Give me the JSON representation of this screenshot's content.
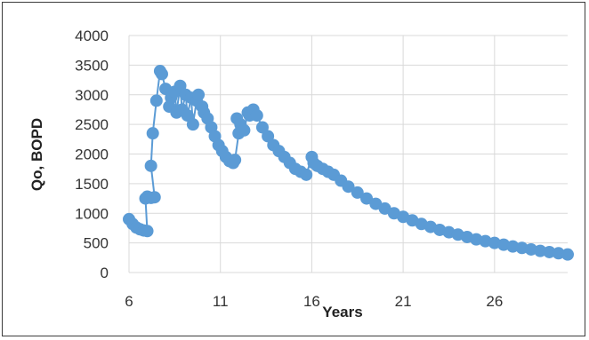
{
  "chart_data": {
    "type": "scatter",
    "title": "",
    "xlabel": "Years",
    "ylabel": "Qo, BOPD",
    "xlim": [
      6,
      30
    ],
    "ylim": [
      0,
      4000
    ],
    "x_ticks": [
      "6",
      "11",
      "16",
      "21",
      "26"
    ],
    "y_ticks": [
      "0",
      "500",
      "1000",
      "1500",
      "2000",
      "2500",
      "3000",
      "3500",
      "4000"
    ],
    "grid": true,
    "legend": "none",
    "series": [
      {
        "color": "#5b9bd5",
        "marker": "circle",
        "line": true,
        "x": [
          6.0,
          6.2,
          6.4,
          6.6,
          6.8,
          7.0,
          6.9,
          7.0,
          7.2,
          7.4,
          7.2,
          7.3,
          7.5,
          7.7,
          7.8,
          8.0,
          8.2,
          8.3,
          8.5,
          8.6,
          8.8,
          8.9,
          9.1,
          9.2,
          9.4,
          9.5,
          9.7,
          9.8,
          10.0,
          10.1,
          10.3,
          10.5,
          10.7,
          10.9,
          11.1,
          11.3,
          11.5,
          11.7,
          11.8,
          12.0,
          11.9,
          12.1,
          12.3,
          12.5,
          12.6,
          12.8,
          13.0,
          13.3,
          13.6,
          13.9,
          14.2,
          14.5,
          14.8,
          15.1,
          15.4,
          15.7,
          16.0,
          16.1,
          16.3,
          16.6,
          16.9,
          17.2,
          17.6,
          18.0,
          18.5,
          19.0,
          19.5,
          20.0,
          20.5,
          21.0,
          21.5,
          22.0,
          22.5,
          23.0,
          23.5,
          24.0,
          24.5,
          25.0,
          25.5,
          26.0,
          26.5,
          27.0,
          27.5,
          28.0,
          28.5,
          29.0,
          29.5,
          30.0
        ],
        "y": [
          900,
          820,
          760,
          730,
          710,
          700,
          1250,
          1280,
          1260,
          1270,
          1800,
          2350,
          2900,
          3400,
          3350,
          3100,
          2800,
          2950,
          3050,
          2700,
          3150,
          2750,
          3000,
          2650,
          2950,
          2500,
          2900,
          3000,
          2800,
          2700,
          2600,
          2450,
          2300,
          2150,
          2050,
          1950,
          1880,
          1850,
          1900,
          2350,
          2600,
          2500,
          2400,
          2700,
          2650,
          2750,
          2650,
          2450,
          2300,
          2150,
          2050,
          1950,
          1850,
          1750,
          1700,
          1650,
          1950,
          1850,
          1800,
          1750,
          1700,
          1650,
          1550,
          1450,
          1350,
          1250,
          1160,
          1080,
          1000,
          940,
          880,
          820,
          770,
          720,
          680,
          640,
          600,
          560,
          530,
          500,
          470,
          440,
          415,
          390,
          365,
          345,
          325,
          305
        ]
      }
    ]
  }
}
